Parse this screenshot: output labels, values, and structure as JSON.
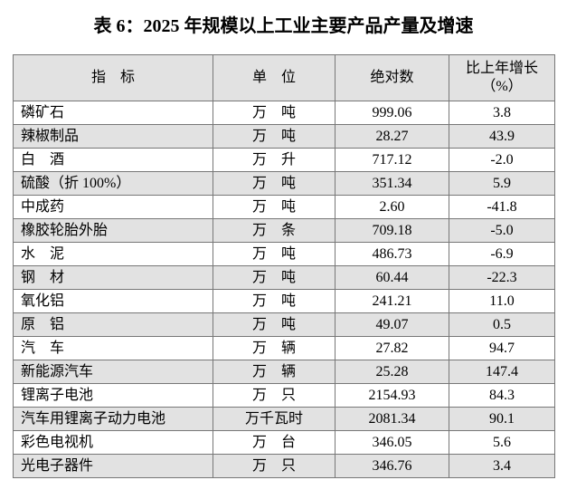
{
  "title": "表 6：2025 年规模以上工业主要产品产量及增速",
  "table": {
    "header": [
      [
        "指　标"
      ],
      [
        "单　位"
      ],
      [
        "绝对数"
      ],
      [
        "比上年增长",
        "（%）"
      ]
    ],
    "rows": [
      [
        "磷矿石",
        "万　吨",
        "999.06",
        "3.8"
      ],
      [
        "辣椒制品",
        "万　吨",
        "28.27",
        "43.9"
      ],
      [
        "白　酒",
        "万　升",
        "717.12",
        "-2.0"
      ],
      [
        "硫酸（折 100%）",
        "万　吨",
        "351.34",
        "5.9"
      ],
      [
        "中成药",
        "万　吨",
        "2.60",
        "-41.8"
      ],
      [
        "橡胶轮胎外胎",
        "万　条",
        "709.18",
        "-5.0"
      ],
      [
        "水　泥",
        "万　吨",
        "486.73",
        "-6.9"
      ],
      [
        "钢　材",
        "万　吨",
        "60.44",
        "-22.3"
      ],
      [
        "氧化铝",
        "万　吨",
        "241.21",
        "11.0"
      ],
      [
        "原　铝",
        "万　吨",
        "49.07",
        "0.5"
      ],
      [
        "汽　车",
        "万　辆",
        "27.82",
        "94.7"
      ],
      [
        "新能源汽车",
        "万　辆",
        "25.28",
        "147.4"
      ],
      [
        "锂离子电池",
        "万　只",
        "2154.93",
        "84.3"
      ],
      [
        "汽车用锂离子动力电池",
        "万千瓦时",
        "2081.34",
        "90.1"
      ],
      [
        "彩色电视机",
        "万　台",
        "346.05",
        "5.6"
      ],
      [
        "光电子器件",
        "万　只",
        "346.76",
        "3.4"
      ]
    ]
  }
}
